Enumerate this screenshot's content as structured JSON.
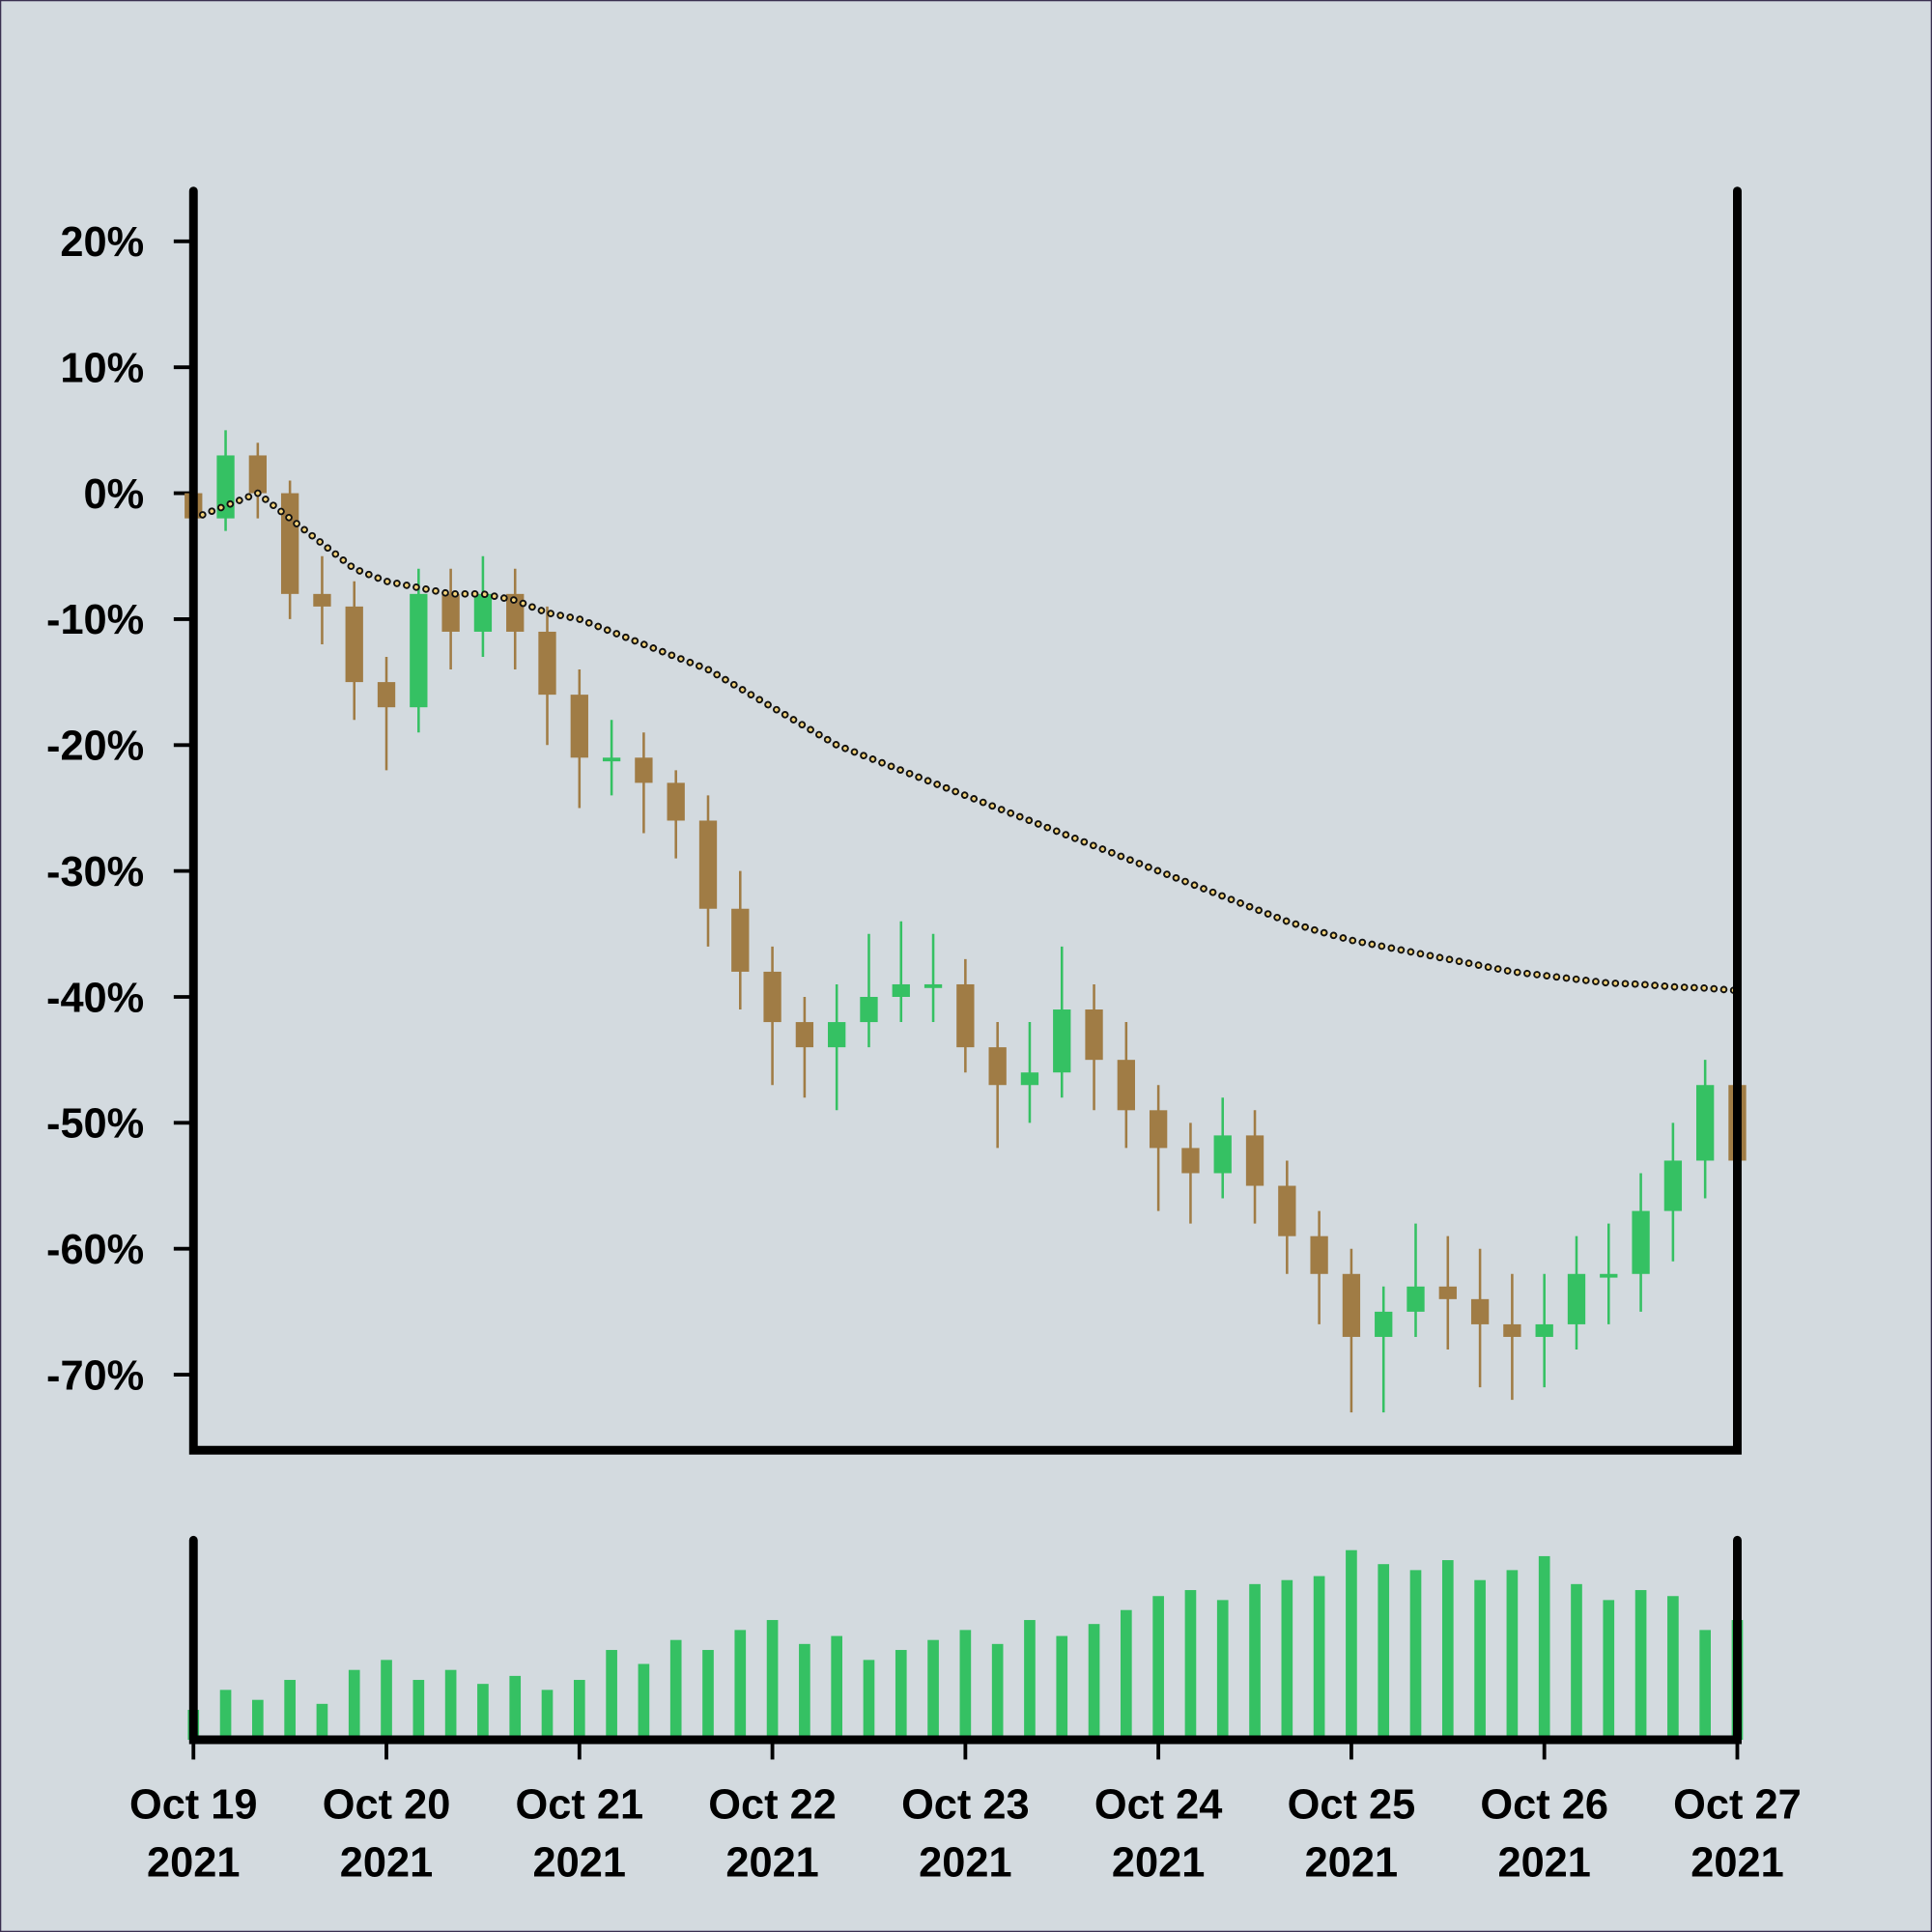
{
  "chart_data": [
    {
      "type": "candlestick",
      "x": [
        0,
        0.1667,
        0.3333,
        0.5,
        0.6667,
        0.8333,
        1,
        1.1667,
        1.3333,
        1.5,
        1.6667,
        1.8333,
        2,
        2.1667,
        2.3333,
        2.5,
        2.6667,
        2.8333,
        3,
        3.1667,
        3.3333,
        3.5,
        3.6667,
        3.8333,
        4,
        4.1667,
        4.3333,
        4.5,
        4.6667,
        4.8333,
        5,
        5.1667,
        5.3333,
        5.5,
        5.6667,
        5.8333,
        6,
        6.1667,
        6.3333,
        6.5,
        6.6667,
        6.8333,
        7,
        7.1667,
        7.3333,
        7.5,
        7.6667,
        7.8333,
        8
      ],
      "open": [
        0,
        -2,
        3,
        0,
        -8,
        -9,
        -15,
        -17,
        -8,
        -11,
        -8,
        -11,
        -16,
        -21,
        -21,
        -23,
        -26,
        -33,
        -38,
        -42,
        -44,
        -42,
        -40,
        -39,
        -39,
        -44,
        -47,
        -46,
        -41,
        -45,
        -49,
        -52,
        -54,
        -51,
        -55,
        -59,
        -62,
        -67,
        -65,
        -63,
        -64,
        -66,
        -67,
        -66,
        -62,
        -62,
        -57,
        -53,
        -47
      ],
      "high": [
        1,
        5,
        4,
        1,
        -5,
        -7,
        -13,
        -6,
        -6,
        -5,
        -6,
        -9,
        -14,
        -18,
        -19,
        -22,
        -24,
        -30,
        -36,
        -40,
        -39,
        -35,
        -34,
        -35,
        -37,
        -42,
        -42,
        -36,
        -39,
        -42,
        -47,
        -50,
        -48,
        -49,
        -53,
        -57,
        -60,
        -63,
        -58,
        -59,
        -60,
        -62,
        -62,
        -59,
        -58,
        -54,
        -50,
        -45,
        -46
      ],
      "low": [
        -5,
        -3,
        -2,
        -10,
        -12,
        -18,
        -22,
        -19,
        -14,
        -13,
        -14,
        -20,
        -25,
        -24,
        -27,
        -29,
        -36,
        -41,
        -47,
        -48,
        -49,
        -44,
        -42,
        -42,
        -46,
        -52,
        -50,
        -48,
        -49,
        -52,
        -57,
        -58,
        -56,
        -58,
        -62,
        -66,
        -73,
        -73,
        -67,
        -68,
        -71,
        -72,
        -71,
        -68,
        -66,
        -65,
        -61,
        -56,
        -58
      ],
      "close": [
        -2,
        3,
        0,
        -8,
        -9,
        -15,
        -17,
        -8,
        -11,
        -8,
        -11,
        -16,
        -21,
        -21,
        -23,
        -26,
        -33,
        -38,
        -42,
        -44,
        -42,
        -40,
        -39,
        -39,
        -44,
        -47,
        -46,
        -41,
        -45,
        -49,
        -52,
        -54,
        -51,
        -55,
        -59,
        -62,
        -67,
        -65,
        -63,
        -64,
        -66,
        -67,
        -66,
        -62,
        -62,
        -57,
        -53,
        -47,
        -53
      ],
      "up_color": "#35c163",
      "down_color": "#a07c45",
      "line_values": [
        -2,
        -1,
        0,
        -2,
        -4,
        -6,
        -7,
        -7.5,
        -8,
        -8,
        -8.5,
        -9.5,
        -10,
        -11,
        -12,
        -13,
        -14,
        -15.5,
        -17,
        -18.5,
        -20,
        -21,
        -22,
        -23,
        -24,
        -25,
        -26,
        -27,
        -28,
        -29,
        -30,
        -31,
        -32,
        -33,
        -34,
        -34.8,
        -35.5,
        -36,
        -36.5,
        -37,
        -37.5,
        -38,
        -38.3,
        -38.6,
        -38.9,
        -39,
        -39.2,
        -39.3,
        -39.5
      ],
      "line_color": "#f3d27a",
      "xlim": [
        0,
        8
      ],
      "ylim": [
        -76,
        24
      ],
      "yticks": [
        {
          "value": 20,
          "label": "20%"
        },
        {
          "value": 10,
          "label": "10%"
        },
        {
          "value": 0,
          "label": "0%"
        },
        {
          "value": -10,
          "label": "-10%"
        },
        {
          "value": -20,
          "label": "-20%"
        },
        {
          "value": -30,
          "label": "-30%"
        },
        {
          "value": -40,
          "label": "-40%"
        },
        {
          "value": -50,
          "label": "-50%"
        },
        {
          "value": -60,
          "label": "-60%"
        },
        {
          "value": -70,
          "label": "-70%"
        }
      ]
    },
    {
      "type": "bar",
      "x": [
        0,
        0.1667,
        0.3333,
        0.5,
        0.6667,
        0.8333,
        1,
        1.1667,
        1.3333,
        1.5,
        1.6667,
        1.8333,
        2,
        2.1667,
        2.3333,
        2.5,
        2.6667,
        2.8333,
        3,
        3.1667,
        3.3333,
        3.5,
        3.6667,
        3.8333,
        4,
        4.1667,
        4.3333,
        4.5,
        4.6667,
        4.8333,
        5,
        5.1667,
        5.3333,
        5.5,
        5.6667,
        5.8333,
        6,
        6.1667,
        6.3333,
        6.5,
        6.6667,
        6.8333,
        7,
        7.1667,
        7.3333,
        7.5,
        7.6667,
        7.8333,
        8
      ],
      "values": [
        15,
        25,
        20,
        30,
        18,
        35,
        40,
        30,
        35,
        28,
        32,
        25,
        30,
        45,
        38,
        50,
        45,
        55,
        60,
        48,
        52,
        40,
        45,
        50,
        55,
        48,
        60,
        52,
        58,
        65,
        72,
        75,
        70,
        78,
        80,
        82,
        95,
        88,
        85,
        90,
        80,
        85,
        92,
        78,
        70,
        75,
        72,
        55,
        60
      ],
      "color": "#35c163",
      "xlim": [
        0,
        8
      ],
      "ylim": [
        0,
        100
      ],
      "xticks": [
        {
          "value": 0,
          "label": [
            "Oct 19",
            "2021"
          ]
        },
        {
          "value": 1,
          "label": [
            "Oct 20",
            "2021"
          ]
        },
        {
          "value": 2,
          "label": [
            "Oct 21",
            "2021"
          ]
        },
        {
          "value": 3,
          "label": [
            "Oct 22",
            "2021"
          ]
        },
        {
          "value": 4,
          "label": [
            "Oct 23",
            "2021"
          ]
        },
        {
          "value": 5,
          "label": [
            "Oct 24",
            "2021"
          ]
        },
        {
          "value": 6,
          "label": [
            "Oct 25",
            "2021"
          ]
        },
        {
          "value": 7,
          "label": [
            "Oct 26",
            "2021"
          ]
        },
        {
          "value": 8,
          "label": [
            "Oct 27",
            "2021"
          ]
        }
      ]
    }
  ]
}
